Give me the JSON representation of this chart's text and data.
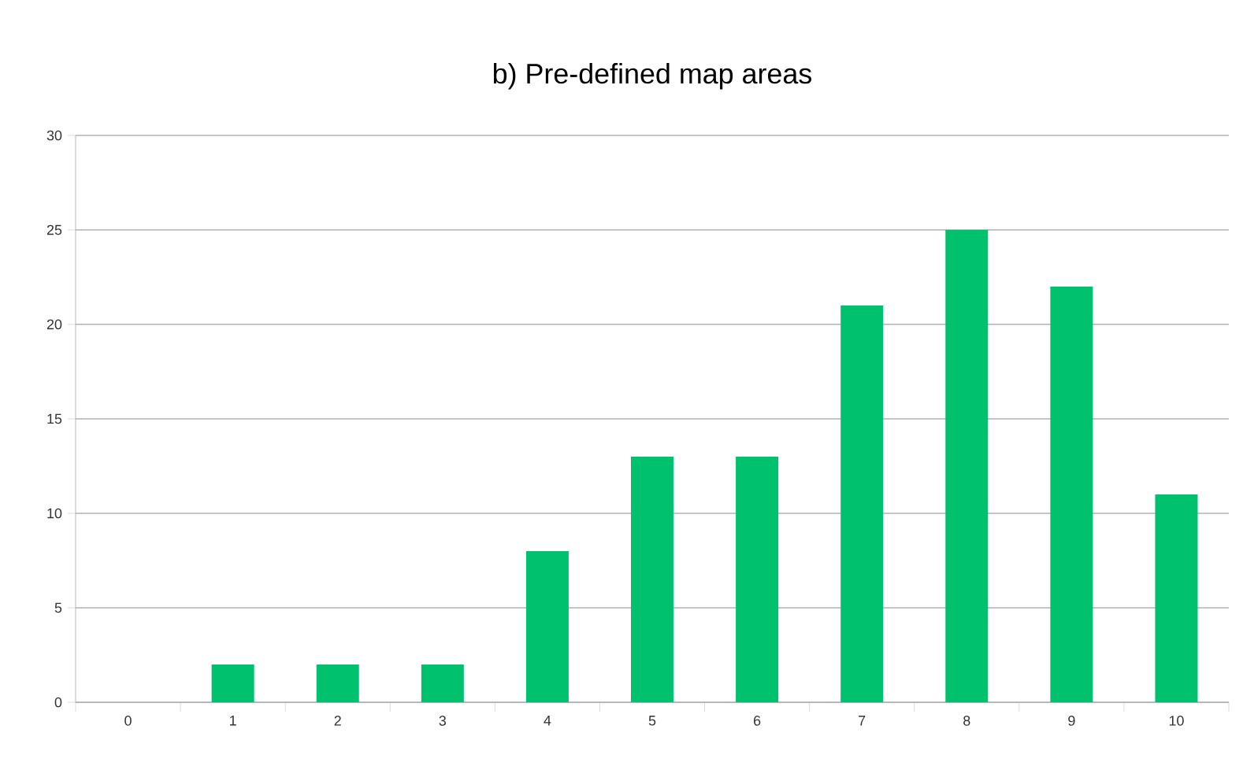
{
  "chart_data": {
    "type": "bar",
    "title": "b) Pre-defined map areas",
    "categories": [
      "0",
      "1",
      "2",
      "3",
      "4",
      "5",
      "6",
      "7",
      "8",
      "9",
      "10"
    ],
    "values": [
      0,
      2,
      2,
      2,
      8,
      13,
      13,
      21,
      25,
      22,
      11
    ],
    "color": "#00c16e",
    "ylim": [
      0,
      30
    ],
    "yticks": [
      0,
      5,
      10,
      15,
      20,
      25,
      30
    ],
    "grid": "y"
  }
}
